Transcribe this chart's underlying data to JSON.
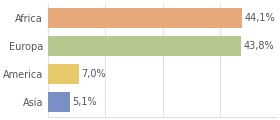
{
  "categories": [
    "Asia",
    "America",
    "Europa",
    "Africa"
  ],
  "values": [
    5.1,
    7.0,
    43.8,
    44.1
  ],
  "labels": [
    "5,1%",
    "7,0%",
    "43,8%",
    "44,1%"
  ],
  "bar_colors": [
    "#7b8fc7",
    "#e8c96a",
    "#b5c98e",
    "#e8a97a"
  ],
  "xlim": [
    0,
    52
  ],
  "background_color": "#ffffff",
  "label_fontsize": 7.0,
  "tick_fontsize": 7.0,
  "grid_color": "#dddddd"
}
